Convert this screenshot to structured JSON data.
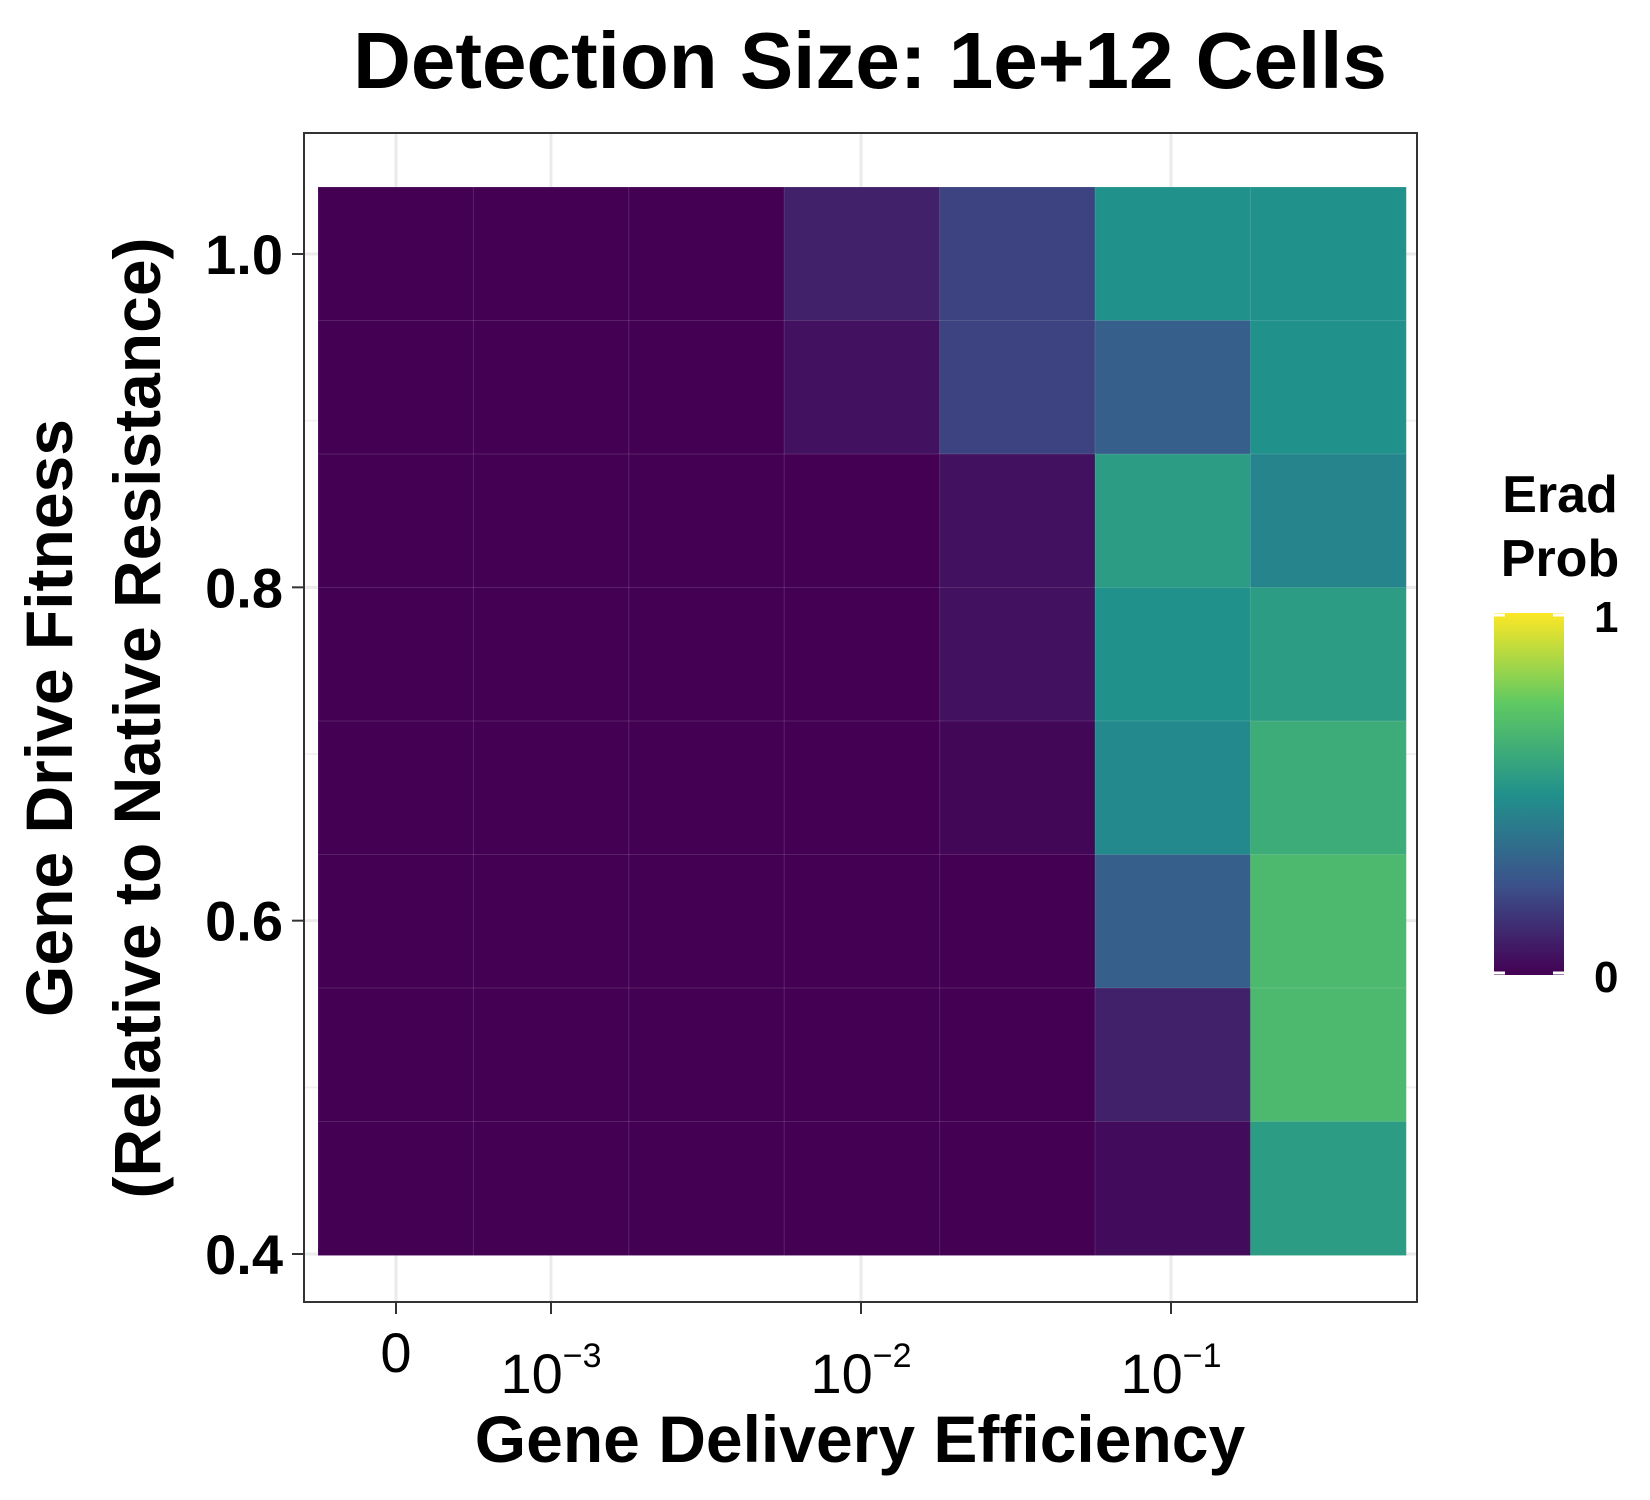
{
  "chart_data": {
    "type": "heatmap",
    "title": "Detection Size: 1e+12 Cells",
    "xlabel": "Gene Delivery Efficiency",
    "ylabel_lines": [
      "Gene Drive Fitness",
      "(Relative to Native Resistance)"
    ],
    "x_tick_labels": [
      {
        "base": "0",
        "exp": ""
      },
      {
        "base": "10",
        "exp": "−3"
      },
      {
        "base": "10",
        "exp": "−2"
      },
      {
        "base": "10",
        "exp": "−1"
      }
    ],
    "y_tick_labels": [
      "1.0",
      "0.8",
      "0.6",
      "0.4"
    ],
    "y_tick_values": [
      1.0,
      0.8,
      0.6,
      0.4
    ],
    "ylim": [
      0.4,
      1.0
    ],
    "grid": true,
    "legend": {
      "title_lines": [
        "Erad",
        "Prob"
      ],
      "min_label": "0",
      "max_label": "1",
      "placement": "right",
      "colormap": "viridis"
    },
    "columns": 7,
    "rows_top_to_bottom_fitness": [
      1.0,
      0.92,
      0.84,
      0.76,
      0.68,
      0.6,
      0.52,
      0.44
    ],
    "values": [
      [
        0.0,
        0.0,
        0.0,
        0.1,
        0.2,
        0.5,
        0.5
      ],
      [
        0.0,
        0.0,
        0.0,
        0.05,
        0.2,
        0.3,
        0.5
      ],
      [
        0.0,
        0.0,
        0.0,
        0.0,
        0.05,
        0.55,
        0.45
      ],
      [
        0.0,
        0.0,
        0.0,
        0.0,
        0.05,
        0.5,
        0.55
      ],
      [
        0.0,
        0.0,
        0.0,
        0.0,
        0.02,
        0.47,
        0.62
      ],
      [
        0.0,
        0.0,
        0.0,
        0.0,
        0.0,
        0.3,
        0.68
      ],
      [
        0.0,
        0.0,
        0.0,
        0.0,
        0.0,
        0.1,
        0.68
      ],
      [
        0.0,
        0.0,
        0.0,
        0.0,
        0.0,
        0.03,
        0.55
      ]
    ]
  }
}
